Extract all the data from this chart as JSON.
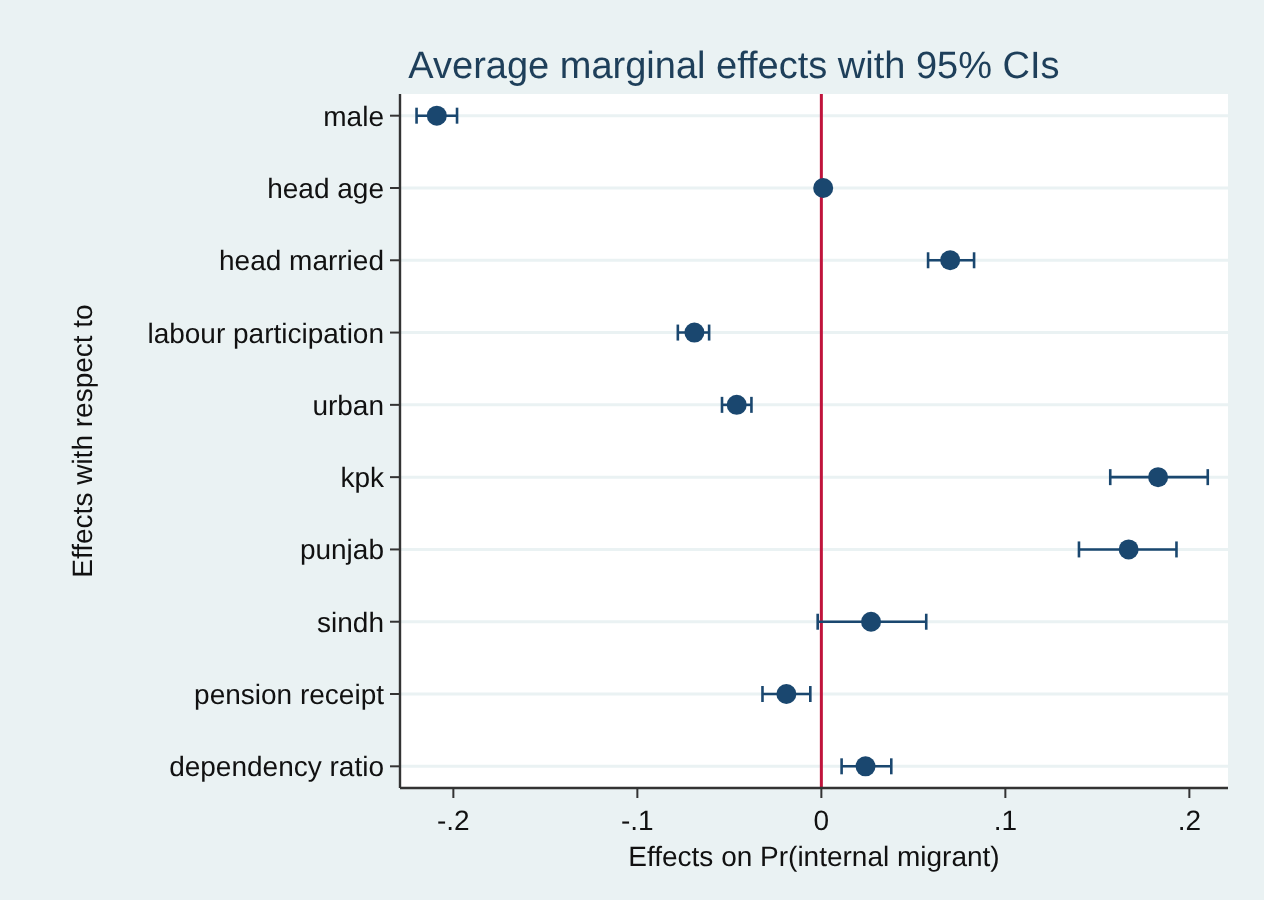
{
  "chart_data": {
    "type": "scatter",
    "orientation": "horizontal",
    "title": "Average marginal effects with 95% CIs",
    "xlabel": "Effects on Pr(internal migrant)",
    "ylabel": "Effects with respect to",
    "categories": [
      "male",
      "head age",
      "head married",
      "labour participation",
      "urban",
      "kpk",
      "punjab",
      "sindh",
      "pension receipt",
      "dependency ratio"
    ],
    "series": [
      {
        "color": "#1a476f",
        "values": [
          -0.209,
          0.001,
          0.07,
          -0.069,
          -0.046,
          0.183,
          0.167,
          0.027,
          -0.019,
          0.024
        ],
        "errors": [
          [
            -0.22,
            -0.198
          ],
          null,
          [
            0.058,
            0.083
          ],
          [
            -0.078,
            -0.061
          ],
          [
            -0.054,
            -0.038
          ],
          [
            0.157,
            0.21
          ],
          [
            0.14,
            0.193
          ],
          [
            -0.002,
            0.057
          ],
          [
            -0.032,
            -0.006
          ],
          [
            0.011,
            0.038
          ]
        ]
      }
    ],
    "xlim": [
      -0.229,
      0.221
    ],
    "xticks": [
      {
        "value": -0.2,
        "label": "-.2"
      },
      {
        "value": -0.1,
        "label": "-.1"
      },
      0,
      {
        "value": 0.1,
        "label": ".1"
      },
      {
        "value": 0.2,
        "label": ".2"
      }
    ],
    "ref_lines": [
      {
        "axis": "x",
        "value": 0,
        "color": "#c0143c"
      }
    ],
    "grid": "y",
    "marker": "circle"
  }
}
